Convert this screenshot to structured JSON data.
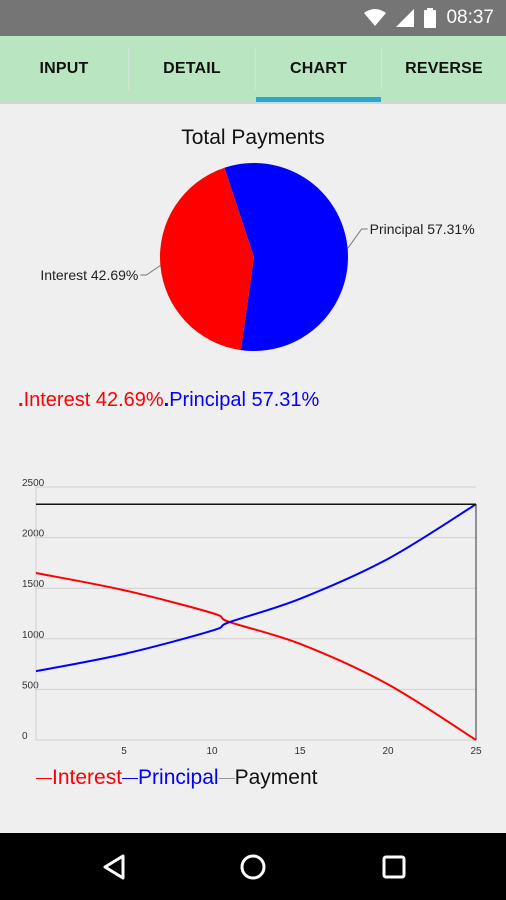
{
  "status_bar": {
    "time": "08:37",
    "icons": [
      "wifi-icon",
      "signal-icon",
      "battery-icon"
    ]
  },
  "tabs": [
    {
      "label": "INPUT",
      "active": false
    },
    {
      "label": "DETAIL",
      "active": false
    },
    {
      "label": "CHART",
      "active": true
    },
    {
      "label": "REVERSE",
      "active": false
    }
  ],
  "colors": {
    "interest": "#ff0000",
    "principal": "#0000ff",
    "payment": "#111111",
    "tab_bar": "#b9e6c1",
    "tab_indicator": "#26a8d6"
  },
  "pie_legend": {
    "interest": "Interest 42.69%",
    "principal": "Principal 57.31%"
  },
  "line_legend": {
    "interest": "Interest",
    "principal": "Principal",
    "payment": "Payment"
  },
  "nav_bar": {
    "icons": [
      "back-icon",
      "home-icon",
      "recents-icon"
    ]
  },
  "chart_data": [
    {
      "type": "pie",
      "title": "Total Payments",
      "slices": [
        {
          "label": "Interest 42.69%",
          "value": 42.69,
          "color": "#ff0000"
        },
        {
          "label": "Principal 57.31%",
          "value": 57.31,
          "color": "#0000ff"
        }
      ]
    },
    {
      "type": "line",
      "xlabel": "",
      "ylabel": "",
      "xlim": [
        0,
        25
      ],
      "ylim": [
        0,
        2500
      ],
      "x_ticks": [
        5,
        10,
        15,
        20,
        25
      ],
      "y_ticks": [
        0,
        500,
        1000,
        1500,
        2000,
        2500
      ],
      "grid": true,
      "x": [
        0,
        5,
        10,
        11,
        15,
        20,
        25
      ],
      "series": [
        {
          "name": "Interest",
          "color": "#ff0000",
          "values": [
            1650,
            1480,
            1255,
            1165,
            950,
            550,
            0
          ]
        },
        {
          "name": "Principal",
          "color": "#0000ff",
          "values": [
            680,
            850,
            1080,
            1165,
            1395,
            1790,
            2330
          ]
        },
        {
          "name": "Payment",
          "color": "#111111",
          "values": [
            2330,
            2330,
            2330,
            2330,
            2330,
            2330,
            2330
          ]
        }
      ]
    }
  ]
}
